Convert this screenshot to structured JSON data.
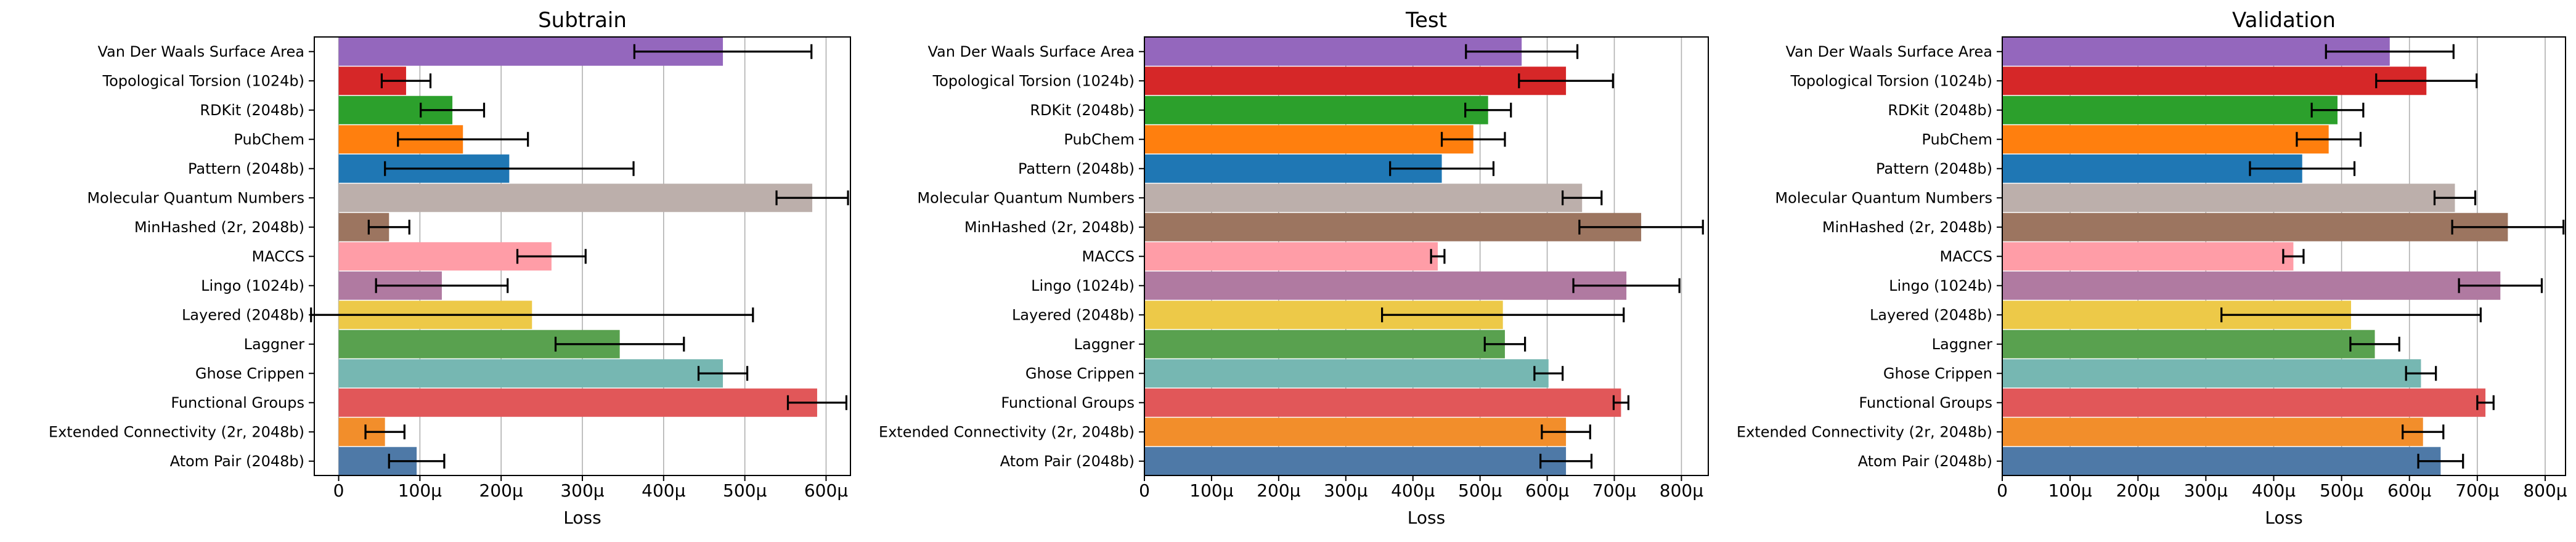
{
  "figure": {
    "background": "#ffffff",
    "grid_color": "#b0b0b0",
    "error_bar_color": "#000000"
  },
  "chart_data": [
    {
      "type": "bar",
      "orientation": "horizontal",
      "title": "Subtrain",
      "xlabel": "Loss",
      "ylabel": "",
      "xlim": [
        -3e-05,
        0.00063
      ],
      "xticks": [
        0,
        0.0001,
        0.0002,
        0.0003,
        0.0004,
        0.0005,
        0.0006
      ],
      "xtick_labels": [
        "0",
        "100μ",
        "200μ",
        "300μ",
        "400μ",
        "500μ",
        "600μ"
      ],
      "grid": "vertical",
      "legend": "none",
      "categories": [
        "Van Der Waals Surface Area",
        "Topological Torsion (1024b)",
        "RDKit (2048b)",
        "PubChem",
        "Pattern (2048b)",
        "Molecular Quantum Numbers",
        "MinHashed (2r, 2048b)",
        "MACCS",
        "Lingo (1024b)",
        "Layered (2048b)",
        "Laggner",
        "Ghose Crippen",
        "Functional Groups",
        "Extended Connectivity (2r, 2048b)",
        "Atom Pair (2048b)"
      ],
      "colors": [
        "#9467bd",
        "#d62728",
        "#2ca02c",
        "#ff7f0e",
        "#1f77b4",
        "#bcafab",
        "#9c7560",
        "#ff9da7",
        "#b07aa1",
        "#edc948",
        "#59a14f",
        "#76b7b2",
        "#e15759",
        "#f28e2b",
        "#4e79a7"
      ],
      "values": [
        0.000473,
        8.3e-05,
        0.00014,
        0.000153,
        0.00021,
        0.000583,
        6.2e-05,
        0.000262,
        0.000127,
        0.000238,
        0.000346,
        0.000473,
        0.000589,
        5.7e-05,
        9.6e-05
      ],
      "errors": [
        0.000109,
        3e-05,
        3.9e-05,
        8e-05,
        0.000153,
        4.4e-05,
        2.5e-05,
        4.2e-05,
        8.1e-05,
        0.000272,
        7.9e-05,
        3e-05,
        3.6e-05,
        2.4e-05,
        3.4e-05
      ]
    },
    {
      "type": "bar",
      "orientation": "horizontal",
      "title": "Test",
      "xlabel": "Loss",
      "ylabel": "",
      "xlim": [
        0,
        0.00084
      ],
      "xticks": [
        0,
        0.0001,
        0.0002,
        0.0003,
        0.0004,
        0.0005,
        0.0006,
        0.0007,
        0.0008
      ],
      "xtick_labels": [
        "0",
        "100μ",
        "200μ",
        "300μ",
        "400μ",
        "500μ",
        "600μ",
        "700μ",
        "800μ"
      ],
      "grid": "vertical",
      "legend": "none",
      "categories": [
        "Van Der Waals Surface Area",
        "Topological Torsion (1024b)",
        "RDKit (2048b)",
        "PubChem",
        "Pattern (2048b)",
        "Molecular Quantum Numbers",
        "MinHashed (2r, 2048b)",
        "MACCS",
        "Lingo (1024b)",
        "Layered (2048b)",
        "Laggner",
        "Ghose Crippen",
        "Functional Groups",
        "Extended Connectivity (2r, 2048b)",
        "Atom Pair (2048b)"
      ],
      "colors": [
        "#9467bd",
        "#d62728",
        "#2ca02c",
        "#ff7f0e",
        "#1f77b4",
        "#bcafab",
        "#9c7560",
        "#ff9da7",
        "#b07aa1",
        "#edc948",
        "#59a14f",
        "#76b7b2",
        "#e15759",
        "#f28e2b",
        "#4e79a7"
      ],
      "values": [
        0.000562,
        0.000628,
        0.000512,
        0.00049,
        0.000443,
        0.000652,
        0.00074,
        0.000437,
        0.000718,
        0.000534,
        0.000537,
        0.000602,
        0.00071,
        0.000628,
        0.000628
      ],
      "errors": [
        8.3e-05,
        7e-05,
        3.4e-05,
        4.7e-05,
        7.7e-05,
        2.9e-05,
        9.2e-05,
        1e-05,
        7.9e-05,
        0.00018,
        3e-05,
        2.1e-05,
        1.1e-05,
        3.6e-05,
        3.8e-05
      ]
    },
    {
      "type": "bar",
      "orientation": "horizontal",
      "title": "Validation",
      "xlabel": "Loss",
      "ylabel": "",
      "xlim": [
        0,
        0.00083
      ],
      "xticks": [
        0,
        0.0001,
        0.0002,
        0.0003,
        0.0004,
        0.0005,
        0.0006,
        0.0007,
        0.0008
      ],
      "xtick_labels": [
        "0",
        "100μ",
        "200μ",
        "300μ",
        "400μ",
        "500μ",
        "600μ",
        "700μ",
        "800μ"
      ],
      "grid": "vertical",
      "legend": "none",
      "categories": [
        "Van Der Waals Surface Area",
        "Topological Torsion (1024b)",
        "RDKit (2048b)",
        "PubChem",
        "Pattern (2048b)",
        "Molecular Quantum Numbers",
        "MinHashed (2r, 2048b)",
        "MACCS",
        "Lingo (1024b)",
        "Layered (2048b)",
        "Laggner",
        "Ghose Crippen",
        "Functional Groups",
        "Extended Connectivity (2r, 2048b)",
        "Atom Pair (2048b)"
      ],
      "colors": [
        "#9467bd",
        "#d62728",
        "#2ca02c",
        "#ff7f0e",
        "#1f77b4",
        "#bcafab",
        "#9c7560",
        "#ff9da7",
        "#b07aa1",
        "#edc948",
        "#59a14f",
        "#76b7b2",
        "#e15759",
        "#f28e2b",
        "#4e79a7"
      ],
      "values": [
        0.000571,
        0.000625,
        0.000494,
        0.000481,
        0.000442,
        0.000667,
        0.000745,
        0.000429,
        0.000734,
        0.000514,
        0.000549,
        0.000617,
        0.000712,
        0.00062,
        0.000646
      ],
      "errors": [
        9.4e-05,
        7.4e-05,
        3.8e-05,
        4.7e-05,
        7.7e-05,
        3e-05,
        8.2e-05,
        1.5e-05,
        6.1e-05,
        0.000191,
        3.6e-05,
        2.2e-05,
        1.2e-05,
        3e-05,
        3.3e-05
      ]
    }
  ]
}
